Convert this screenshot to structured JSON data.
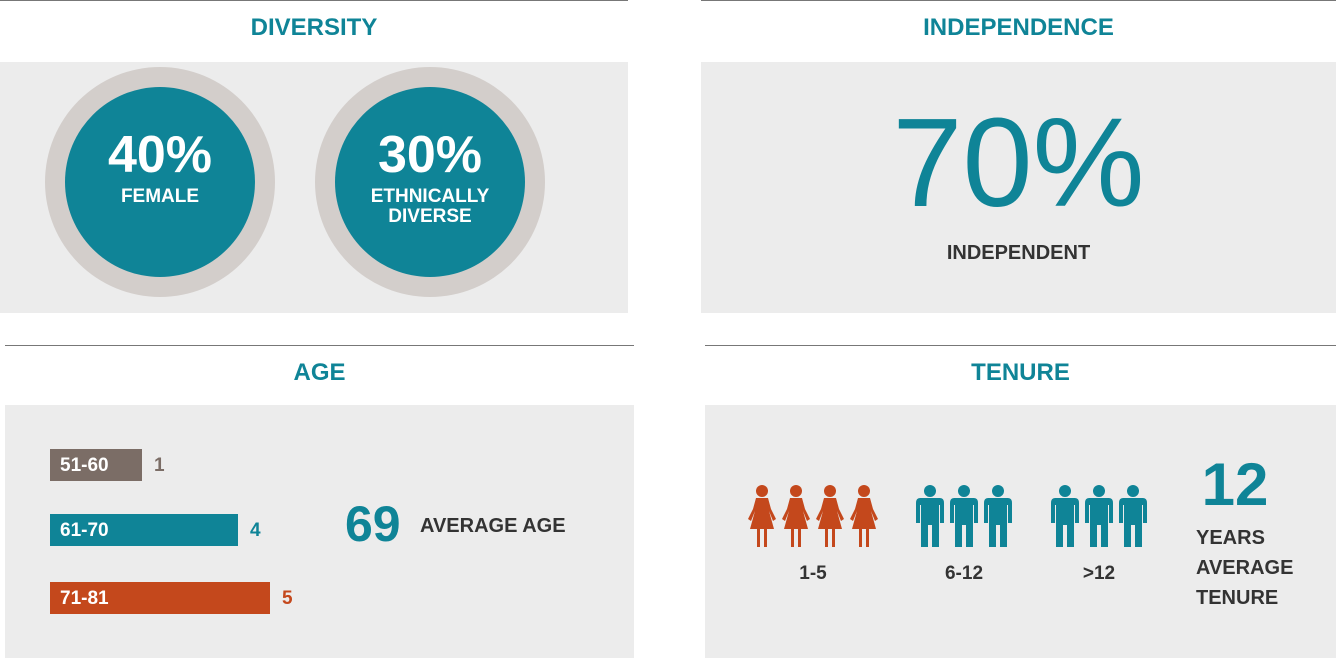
{
  "diversity": {
    "title": "DIVERSITY",
    "stats": [
      {
        "value": "40%",
        "label": "FEMALE"
      },
      {
        "value": "30%",
        "label": "ETHNICALLY DIVERSE"
      }
    ]
  },
  "independence": {
    "title": "INDEPENDENCE",
    "value": "70%",
    "label": "INDEPENDENT"
  },
  "age": {
    "title": "AGE",
    "bars": [
      {
        "label": "51-60",
        "value": 1,
        "color": "#7b6d66"
      },
      {
        "label": "61-70",
        "value": 4,
        "color": "#0f8497"
      },
      {
        "label": "71-81",
        "value": 5,
        "color": "#c4481c"
      }
    ],
    "average": 69,
    "average_label": "AVERAGE AGE"
  },
  "tenure": {
    "title": "TENURE",
    "groups": [
      {
        "label": "1-5",
        "count": 4,
        "icon": "female",
        "color": "#c4481c"
      },
      {
        "label": "6-12",
        "count": 3,
        "icon": "male",
        "color": "#0f8497"
      },
      {
        "label": ">12",
        "count": 3,
        "icon": "male",
        "color": "#0f8497"
      }
    ],
    "average": 12,
    "average_label": "YEARS AVERAGE TENURE"
  }
}
